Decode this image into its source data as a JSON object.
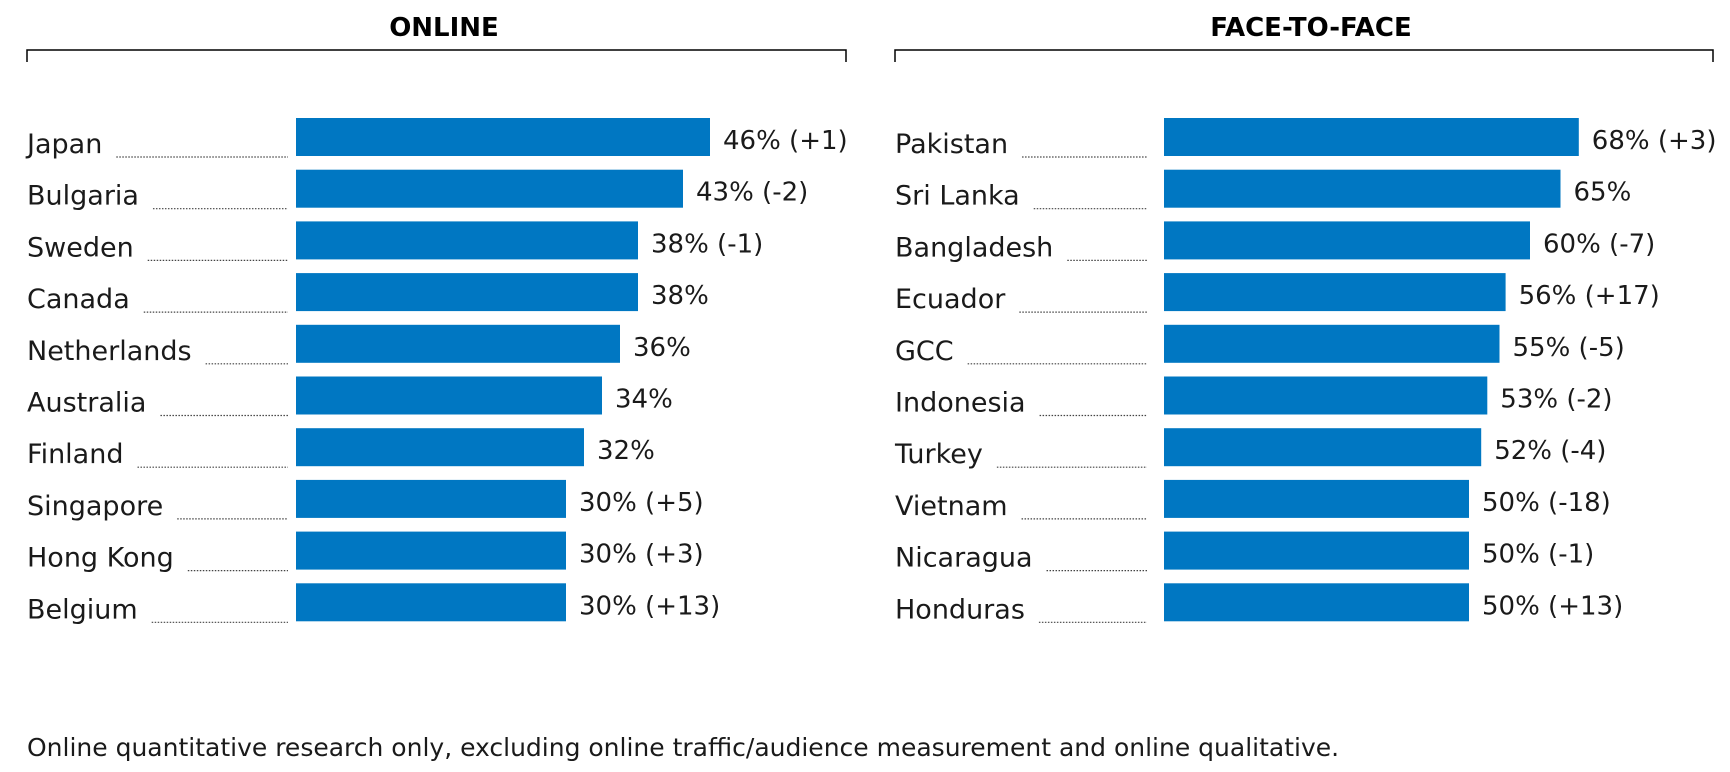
{
  "chart_data": [
    {
      "type": "bar",
      "orientation": "horizontal",
      "title": "ONLINE",
      "categories": [
        "Japan",
        "Bulgaria",
        "Sweden",
        "Canada",
        "Netherlands",
        "Australia",
        "Finland",
        "Singapore",
        "Hong Kong",
        "Belgium"
      ],
      "values": [
        46,
        43,
        38,
        38,
        36,
        34,
        32,
        30,
        30,
        30
      ],
      "labels": [
        "46% (+1)",
        "43% (-2)",
        "38% (-1)",
        "38%",
        "36%",
        "34%",
        "32%",
        "30% (+5)",
        "30% (+3)",
        "30% (+13)"
      ],
      "unit": "%"
    },
    {
      "type": "bar",
      "orientation": "horizontal",
      "title": "FACE-TO-FACE",
      "categories": [
        "Pakistan",
        "Sri Lanka",
        "Bangladesh",
        "Ecuador",
        "GCC",
        "Indonesia",
        "Turkey",
        "Vietnam",
        "Nicaragua",
        "Honduras"
      ],
      "values": [
        68,
        65,
        60,
        56,
        55,
        53,
        52,
        50,
        50,
        50
      ],
      "labels": [
        "68% (+3)",
        "65%",
        "60% (-7)",
        "56% (+17)",
        "55% (-5)",
        "53% (-2)",
        "52% (-4)",
        "50% (-18)",
        "50% (-1)",
        "50% (+13)"
      ],
      "unit": "%"
    }
  ],
  "colors": {
    "bar": "#0077c2",
    "text": "#1a1a1a"
  },
  "footnote": "Online quantitative research only, excluding online traffic/audience measurement and online qualitative."
}
